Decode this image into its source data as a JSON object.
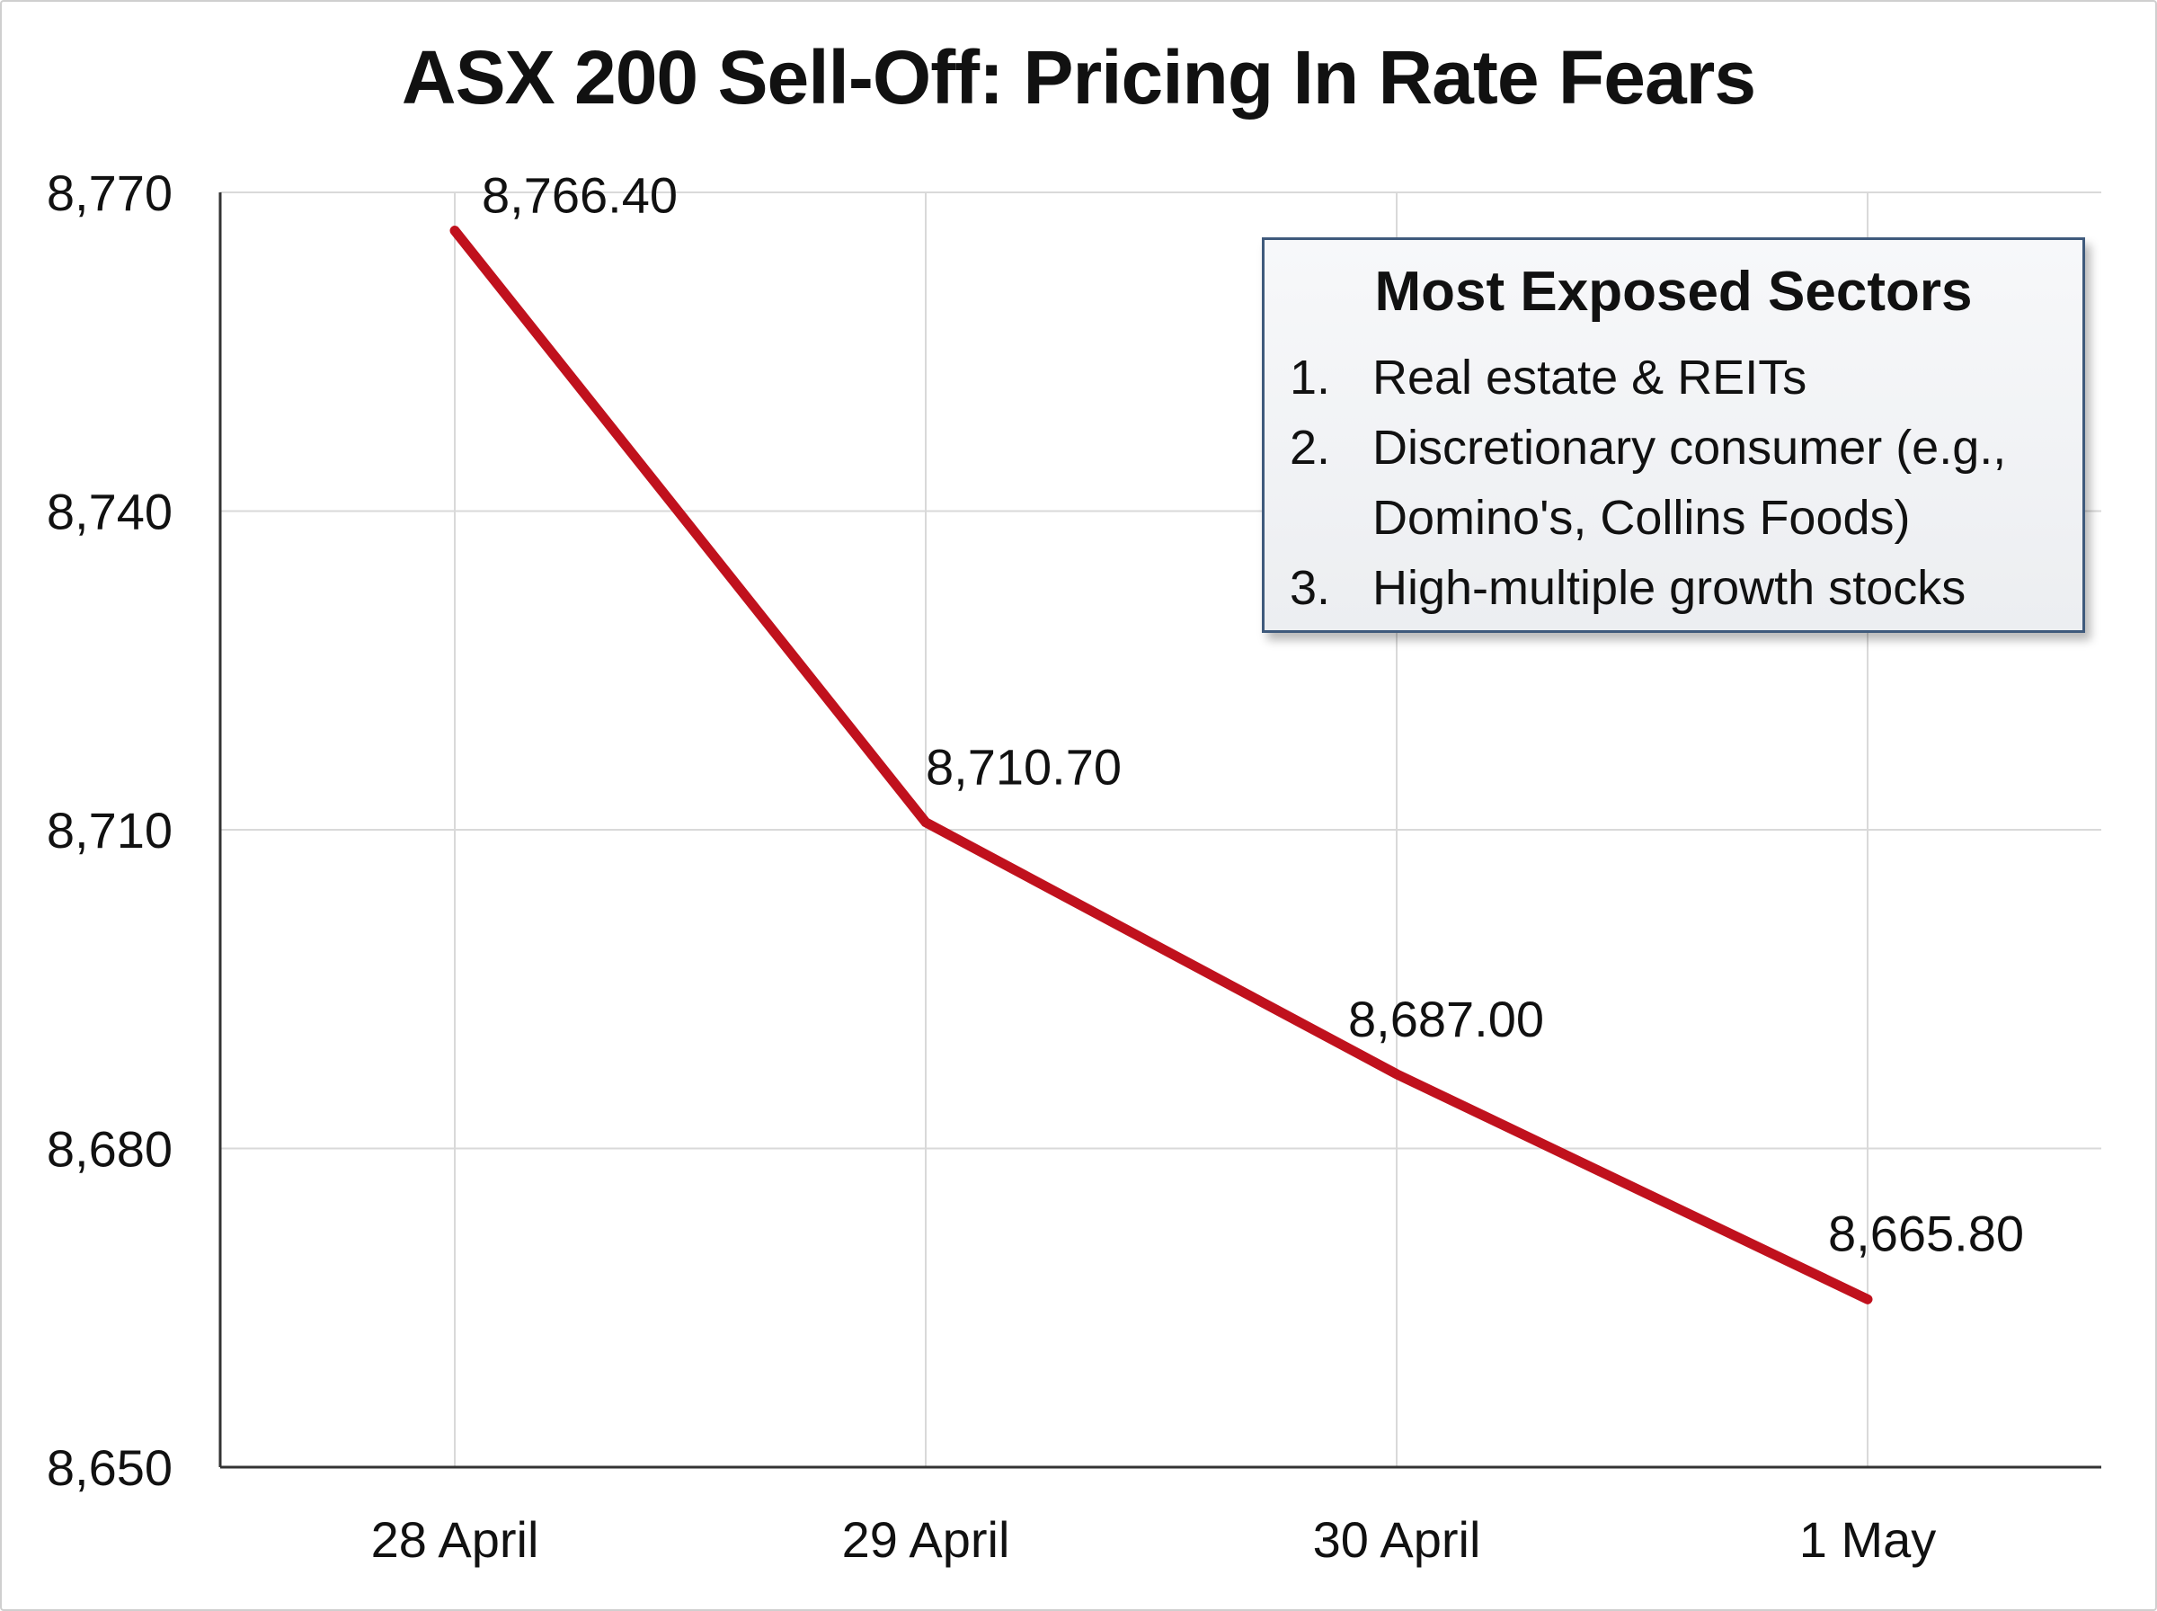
{
  "chart_data": {
    "type": "line",
    "title": "ASX 200 Sell-Off: Pricing In Rate Fears",
    "xlabel": "",
    "ylabel": "",
    "categories": [
      "28 April",
      "29 April",
      "30 April",
      "1 May"
    ],
    "series": [
      {
        "values": [
          8766.4,
          8710.7,
          8687.0,
          8665.8
        ],
        "data_labels": [
          "8,766.40",
          "8,710.70",
          "8,687.00",
          "8,665.80"
        ],
        "color": "#c0111d"
      }
    ],
    "ylim": [
      8650,
      8770
    ],
    "y_ticks": [
      8650,
      8680,
      8710,
      8740,
      8770
    ],
    "y_tick_labels": [
      "8,650",
      "8,680",
      "8,710",
      "8,740",
      "8,770"
    ],
    "grid": true,
    "grid_color": "#d9d9d9",
    "axis_color": "#333333"
  },
  "legend_box": {
    "title": "Most Exposed Sectors",
    "items": [
      {
        "number": "1.",
        "text": "Real estate & REITs"
      },
      {
        "number": "2.",
        "text": "Discretionary consumer (e.g., Domino's, Collins Foods)"
      },
      {
        "number": "3.",
        "text": "High-multiple growth stocks"
      }
    ],
    "border_color": "#3f5a7c",
    "placement": "top-right"
  }
}
